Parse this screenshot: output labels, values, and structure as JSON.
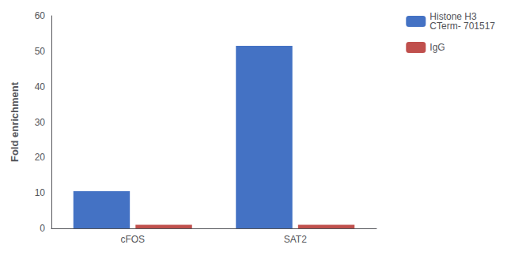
{
  "chart_data": {
    "type": "bar",
    "ylabel": "Fold enrichment",
    "categories": [
      "cFOS",
      "SAT2"
    ],
    "series": [
      {
        "name": "Histone H3\nCTerm- 701517",
        "color": "#4472c4",
        "values": [
          10.5,
          51.5
        ]
      },
      {
        "name": "IgG",
        "color": "#c0504d",
        "values": [
          1.0,
          1.0
        ]
      }
    ],
    "ylim": [
      0,
      60
    ],
    "yticks": [
      0,
      10,
      20,
      30,
      40,
      50,
      60
    ],
    "grid": false,
    "legend": "upper right"
  }
}
